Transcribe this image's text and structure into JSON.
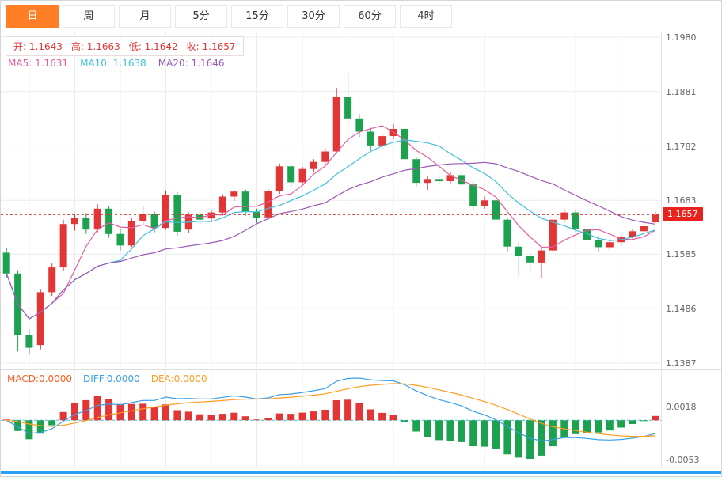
{
  "toolbar": {
    "active_bg": "#ff7e26",
    "tabs": [
      {
        "label": "日",
        "active": true
      },
      {
        "label": "周"
      },
      {
        "label": "月"
      },
      {
        "label": "5分"
      },
      {
        "label": "15分"
      },
      {
        "label": "30分"
      },
      {
        "label": "60分"
      },
      {
        "label": "4时"
      }
    ]
  },
  "legend": {
    "ohlc_color": "#e23535",
    "ohlc": [
      {
        "label": "开:",
        "value": "1.1643"
      },
      {
        "label": "高:",
        "value": "1.1663"
      },
      {
        "label": "低:",
        "value": "1.1642"
      },
      {
        "label": "收:",
        "value": "1.1657"
      }
    ],
    "ma": [
      {
        "label": "MA5:",
        "value": "1.1631",
        "color": "#e85aa0"
      },
      {
        "label": "MA10:",
        "value": "1.1638",
        "color": "#3fc0d8"
      },
      {
        "label": "MA20:",
        "value": "1.1646",
        "color": "#9c59b6"
      }
    ]
  },
  "macd_legend": [
    {
      "label": "MACD:",
      "value": "0.0000",
      "color": "#ff5a1e"
    },
    {
      "label": "DIFF:",
      "value": "0.0000",
      "color": "#3a9fe8"
    },
    {
      "label": "DEA:",
      "value": "0.0000",
      "color": "#ff9d21"
    }
  ],
  "axis": {
    "main_ticks": [
      "1.1980",
      "1.1881",
      "1.1782",
      "1.1683",
      "1.1585",
      "1.1486",
      "1.1387"
    ],
    "price_tag": "1.1657",
    "price_tag_bg": "#e8231d",
    "macd_ticks": [
      "0.0018",
      "-0.0053"
    ]
  },
  "footer": {
    "bar_color": "#2b9ff5"
  },
  "chart_data": {
    "type": "candlestick",
    "title": "",
    "timeframe_selected": "日",
    "y_ticks": [
      1.198,
      1.1881,
      1.1782,
      1.1683,
      1.1585,
      1.1486,
      1.1387
    ],
    "ylim": [
      1.1387,
      1.198
    ],
    "current_price": 1.1657,
    "up_color": "#e23535",
    "down_color": "#1ca24e",
    "grid_color": "#ececec",
    "current_price_line_color": "#e23535",
    "ma_series": [
      {
        "period": 5,
        "color": "#e85aa0",
        "last": 1.1631
      },
      {
        "period": 10,
        "color": "#3fc0d8",
        "last": 1.1638
      },
      {
        "period": 20,
        "color": "#9c59b6",
        "last": 1.1646
      }
    ],
    "candle_columns": [
      "open",
      "high",
      "low",
      "close"
    ],
    "candles": [
      [
        1.1588,
        1.1596,
        1.1541,
        1.155
      ],
      [
        1.155,
        1.1556,
        1.1408,
        1.1438
      ],
      [
        1.1438,
        1.1448,
        1.1402,
        1.1415
      ],
      [
        1.142,
        1.1522,
        1.1412,
        1.1516
      ],
      [
        1.1516,
        1.1568,
        1.1509,
        1.1561
      ],
      [
        1.1561,
        1.1648,
        1.1555,
        1.164
      ],
      [
        1.164,
        1.1658,
        1.1628,
        1.1651
      ],
      [
        1.1651,
        1.166,
        1.1622,
        1.163
      ],
      [
        1.163,
        1.1676,
        1.1625,
        1.1668
      ],
      [
        1.1668,
        1.1672,
        1.1615,
        1.1622
      ],
      [
        1.1622,
        1.1632,
        1.1592,
        1.1601
      ],
      [
        1.1601,
        1.165,
        1.1598,
        1.1645
      ],
      [
        1.1645,
        1.1673,
        1.164,
        1.1658
      ],
      [
        1.1658,
        1.1663,
        1.1625,
        1.1633
      ],
      [
        1.1633,
        1.1701,
        1.163,
        1.1693
      ],
      [
        1.1693,
        1.1698,
        1.1618,
        1.1626
      ],
      [
        1.163,
        1.1661,
        1.1624,
        1.1657
      ],
      [
        1.1657,
        1.1663,
        1.164,
        1.1648
      ],
      [
        1.165,
        1.1665,
        1.1644,
        1.1661
      ],
      [
        1.1661,
        1.1694,
        1.1656,
        1.169
      ],
      [
        1.169,
        1.1702,
        1.1682,
        1.1699
      ],
      [
        1.1699,
        1.1703,
        1.1655,
        1.1662
      ],
      [
        1.1662,
        1.1668,
        1.1642,
        1.1651
      ],
      [
        1.1652,
        1.1703,
        1.1648,
        1.17
      ],
      [
        1.17,
        1.175,
        1.1695,
        1.1745
      ],
      [
        1.1745,
        1.175,
        1.1708,
        1.1716
      ],
      [
        1.1716,
        1.1744,
        1.171,
        1.174
      ],
      [
        1.174,
        1.1758,
        1.1735,
        1.1753
      ],
      [
        1.1753,
        1.1778,
        1.1748,
        1.1772
      ],
      [
        1.1772,
        1.1888,
        1.1768,
        1.1872
      ],
      [
        1.1872,
        1.1915,
        1.182,
        1.1832
      ],
      [
        1.1832,
        1.184,
        1.1798,
        1.1808
      ],
      [
        1.1808,
        1.1815,
        1.1775,
        1.1783
      ],
      [
        1.1783,
        1.1805,
        1.1778,
        1.18
      ],
      [
        1.18,
        1.1822,
        1.1795,
        1.1813
      ],
      [
        1.1813,
        1.1818,
        1.1752,
        1.1758
      ],
      [
        1.1758,
        1.1762,
        1.1708,
        1.1715
      ],
      [
        1.1715,
        1.1728,
        1.1702,
        1.1722
      ],
      [
        1.1722,
        1.173,
        1.1712,
        1.1718
      ],
      [
        1.1718,
        1.1734,
        1.1714,
        1.1729
      ],
      [
        1.1729,
        1.1733,
        1.1705,
        1.1712
      ],
      [
        1.1712,
        1.1718,
        1.1665,
        1.1672
      ],
      [
        1.1672,
        1.169,
        1.1668,
        1.1683
      ],
      [
        1.1683,
        1.1688,
        1.1642,
        1.1648
      ],
      [
        1.1648,
        1.1652,
        1.159,
        1.1599
      ],
      [
        1.1599,
        1.1606,
        1.1546,
        1.1582
      ],
      [
        1.1582,
        1.1588,
        1.1552,
        1.157
      ],
      [
        1.157,
        1.1598,
        1.1542,
        1.1592
      ],
      [
        1.1592,
        1.1652,
        1.1588,
        1.1648
      ],
      [
        1.1648,
        1.1668,
        1.1642,
        1.1661
      ],
      [
        1.1661,
        1.1666,
        1.1625,
        1.1631
      ],
      [
        1.1631,
        1.1637,
        1.1605,
        1.1611
      ],
      [
        1.1611,
        1.1618,
        1.159,
        1.1598
      ],
      [
        1.1598,
        1.1612,
        1.1592,
        1.1607
      ],
      [
        1.1607,
        1.162,
        1.16,
        1.1616
      ],
      [
        1.1616,
        1.1631,
        1.161,
        1.1627
      ],
      [
        1.1627,
        1.164,
        1.162,
        1.1636
      ],
      [
        1.1643,
        1.1663,
        1.1642,
        1.1657
      ]
    ],
    "macd": {
      "params": [
        12,
        26,
        9
      ],
      "zero_line_color": "#35c3d5",
      "diff_color": "#3a9fe8",
      "dea_color": "#ff9d21",
      "hist_up_color": "#e23535",
      "hist_down_color": "#1ca24e",
      "y_ticks": [
        0.0018,
        -0.0053
      ],
      "last_values": {
        "macd": "0.0000",
        "diff": "0.0000",
        "dea": "0.0000"
      }
    }
  }
}
